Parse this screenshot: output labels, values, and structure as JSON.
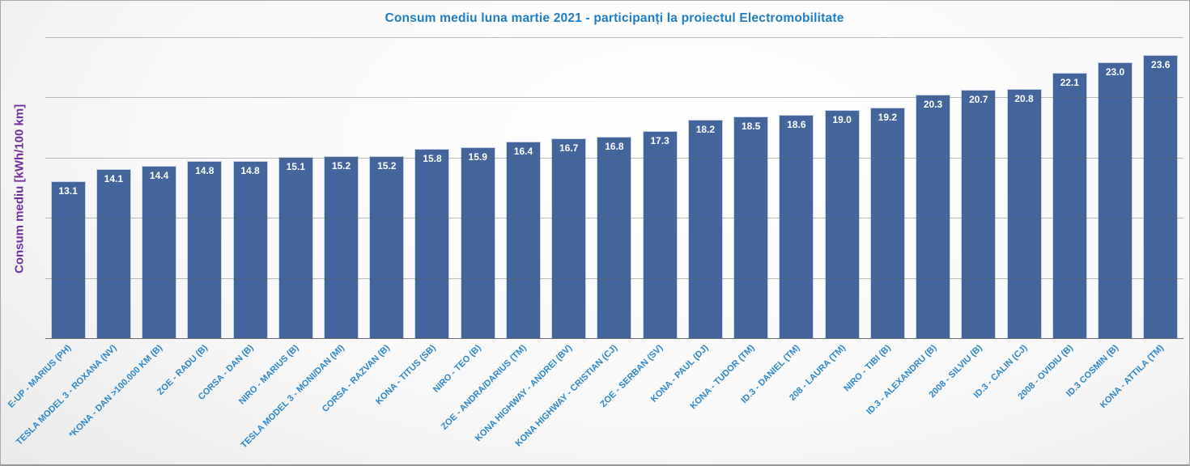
{
  "chart_data": {
    "type": "bar",
    "title": "Consum mediu luna martie 2021 - participanți la proiectul Electromobilitate",
    "ylabel": "Consum mediu [kWh/100 km]",
    "xlabel": "",
    "ylim": [
      0,
      25
    ],
    "gridlines": [
      5,
      10,
      15,
      20,
      25
    ],
    "grid": true,
    "legend": false,
    "bar_color": "#44659B",
    "bar_border_color": "#C9D2E2",
    "value_label_color": "#FFFFFF",
    "title_color": "#1F7DC8",
    "ylabel_color": "#7030A0",
    "xtick_color": "#2E86C8",
    "categories": [
      "E-UP - MARIUS (PH)",
      "TESLA MODEL 3 - ROXANA (NV)",
      "*KONA - DAN >100.000 KM (B)",
      "ZOE - RADU (B)",
      "CORSA - DAN (B)",
      "NIRO - MARIUS (B)",
      "TESLA MODEL 3 - MONI/DAN (MI)",
      "CORSA - RAZVAN (B)",
      "KONA - TITUS (SB)",
      "NIRO - TEO (B)",
      "ZOE - ANDRA/DARIUS (TM)",
      "KONA HIGHWAY - ANDREI (BV)",
      "KONA HIGHWAY - CRISTIAN (CJ)",
      "ZOE - SERBAN (SV)",
      "KONA - PAUL (DJ)",
      "KONA - TUDOR (TM)",
      "ID.3 - DANIEL (TM)",
      "208 - LAURA (TM)",
      "NIRO - TIBI (B)",
      "ID.3 - ALEXANDRU (B)",
      "2008 - SILVIU (B)",
      "ID.3 - CALIN (CJ)",
      "2008 - OVIDIU (B)",
      "ID.3 COSMIN (B)",
      "KONA - ATTILA (TM)"
    ],
    "values": [
      13.1,
      14.1,
      14.4,
      14.8,
      14.8,
      15.1,
      15.2,
      15.2,
      15.8,
      15.9,
      16.4,
      16.7,
      16.8,
      17.3,
      18.2,
      18.5,
      18.6,
      19.0,
      19.2,
      20.3,
      20.7,
      20.8,
      22.1,
      23.0,
      23.6
    ],
    "value_labels": [
      "13.1",
      "14.1",
      "14.4",
      "14.8",
      "14.8",
      "15.1",
      "15.2",
      "15.2",
      "15.8",
      "15.9",
      "16.4",
      "16.7",
      "16.8",
      "17.3",
      "18.2",
      "18.5",
      "18.6",
      "19.0",
      "19.2",
      "20.3",
      "20.7",
      "20.8",
      "22.1",
      "23.0",
      "23.6"
    ]
  }
}
